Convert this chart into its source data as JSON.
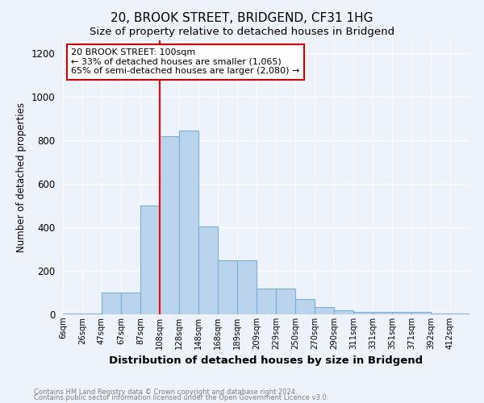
{
  "title": "20, BROOK STREET, BRIDGEND, CF31 1HG",
  "subtitle": "Size of property relative to detached houses in Bridgend",
  "xlabel": "Distribution of detached houses by size in Bridgend",
  "ylabel": "Number of detached properties",
  "bin_labels": [
    "6sqm",
    "26sqm",
    "47sqm",
    "67sqm",
    "87sqm",
    "108sqm",
    "128sqm",
    "148sqm",
    "168sqm",
    "189sqm",
    "209sqm",
    "229sqm",
    "250sqm",
    "270sqm",
    "290sqm",
    "311sqm",
    "331sqm",
    "351sqm",
    "371sqm",
    "392sqm",
    "412sqm"
  ],
  "bar_heights": [
    5,
    5,
    100,
    100,
    500,
    820,
    845,
    405,
    250,
    250,
    120,
    120,
    70,
    35,
    20,
    10,
    10,
    10,
    10,
    5,
    5
  ],
  "bar_color": "#bad4ed",
  "bar_edgecolor": "#7aafd4",
  "bar_linewidth": 0.8,
  "red_line_bin": 5,
  "annotation_text": "20 BROOK STREET: 100sqm\n← 33% of detached houses are smaller (1,065)\n65% of semi-detached houses are larger (2,080) →",
  "annotation_box_color": "#ffffff",
  "annotation_box_edgecolor": "#cc0000",
  "annotation_fontsize": 8.0,
  "ylim": [
    0,
    1260
  ],
  "yticks": [
    0,
    200,
    400,
    600,
    800,
    1000,
    1200
  ],
  "footer1": "Contains HM Land Registry data © Crown copyright and database right 2024.",
  "footer2": "Contains public sector information licensed under the Open Government Licence v3.0.",
  "bg_color": "#eef2fb",
  "title_fontsize": 11,
  "subtitle_fontsize": 9.5
}
